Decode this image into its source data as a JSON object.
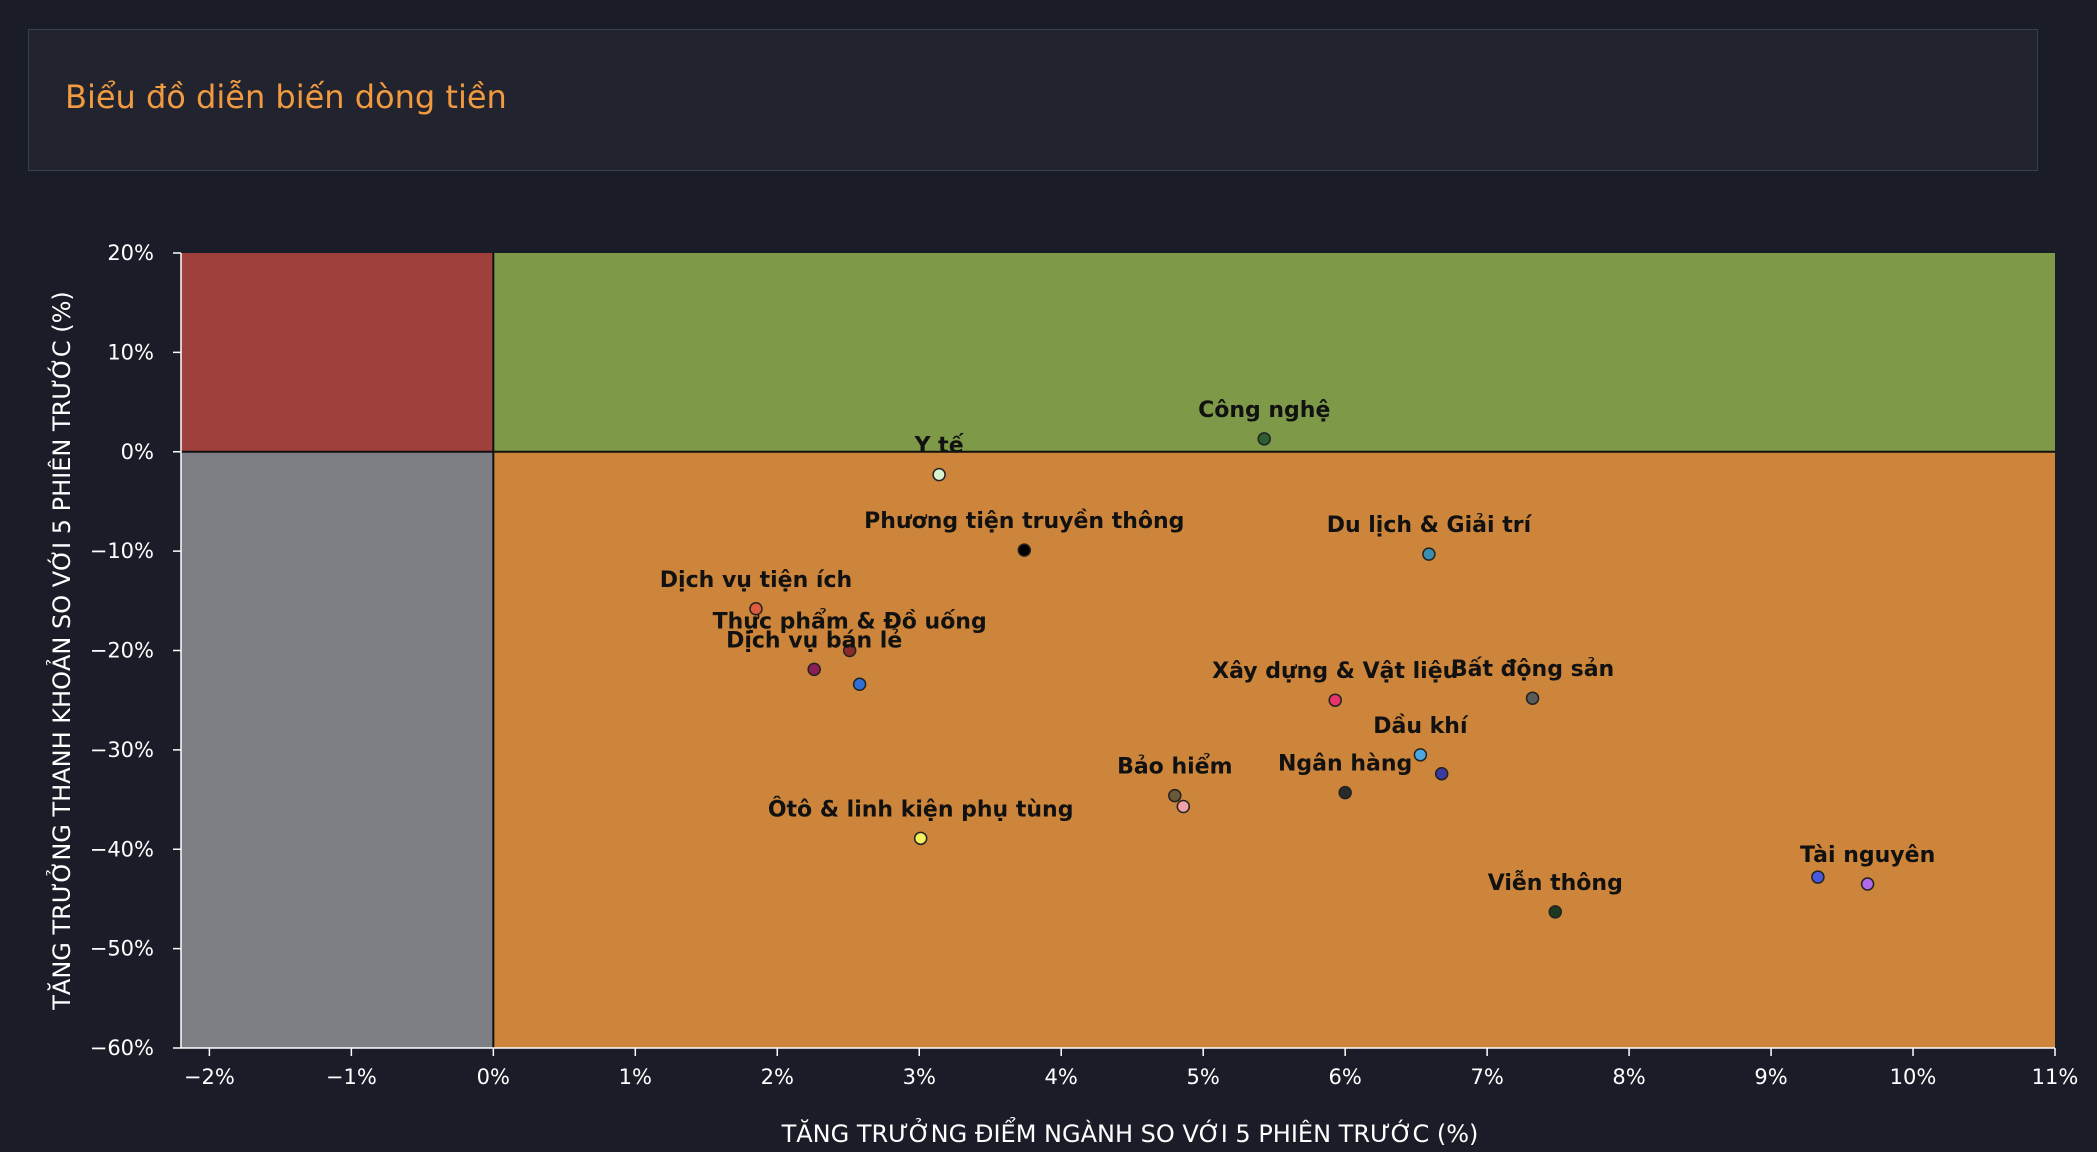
{
  "header": {
    "title": "Biểu đồ diễn biến dòng tiền"
  },
  "chart_data": {
    "type": "scatter",
    "title": "",
    "xlabel": "TĂNG TRƯỞNG ĐIỂM NGÀNH SO VỚI 5 PHIÊN TRƯỚC (%)",
    "ylabel": "TĂNG TRƯỞNG THANH KHOẢN SO VỚI 5 PHIÊN TRƯỚC (%)",
    "xlim": [
      -2.2,
      11
    ],
    "ylim": [
      -60,
      20
    ],
    "x_ticks": [
      -2,
      -1,
      0,
      1,
      2,
      3,
      4,
      5,
      6,
      7,
      8,
      9,
      10,
      11
    ],
    "x_tick_labels": [
      "−2%",
      "−1%",
      "0%",
      "1%",
      "2%",
      "3%",
      "4%",
      "5%",
      "6%",
      "7%",
      "8%",
      "9%",
      "10%",
      "11%"
    ],
    "y_ticks": [
      20,
      10,
      0,
      -10,
      -20,
      -30,
      -40,
      -50,
      -60
    ],
    "y_tick_labels": [
      "20%",
      "10%",
      "0%",
      "−10%",
      "−20%",
      "−30%",
      "−40%",
      "−50%",
      "−60%"
    ],
    "quadrants": [
      {
        "x": [
          -2.2,
          0
        ],
        "y": [
          0,
          20
        ],
        "color": "#a0403c"
      },
      {
        "x": [
          0,
          11
        ],
        "y": [
          0,
          20
        ],
        "color": "#7e9a48"
      },
      {
        "x": [
          -2.2,
          0
        ],
        "y": [
          -60,
          0
        ],
        "color": "#7e7f85"
      },
      {
        "x": [
          0,
          11
        ],
        "y": [
          -60,
          0
        ],
        "color": "#cc853a"
      }
    ],
    "points": [
      {
        "label": "Công nghệ",
        "x": 5.43,
        "y": 1.3,
        "color": "#2e5e32"
      },
      {
        "label": "Y tế",
        "x": 3.14,
        "y": -2.3,
        "color": "#d9f2d0"
      },
      {
        "label": "Phương tiện truyền thông",
        "x": 3.74,
        "y": -9.9,
        "color": "#000000"
      },
      {
        "label": "Du lịch & Giải trí",
        "x": 6.59,
        "y": -10.3,
        "color": "#3a8fb0"
      },
      {
        "label": "Dịch vụ tiện ích",
        "x": 1.85,
        "y": -15.8,
        "color": "#e05a3c"
      },
      {
        "label": "Thực phẩm & Đồ uống",
        "x": 2.51,
        "y": -20.0,
        "color": "#8a2a2a"
      },
      {
        "label": "Dịch vụ bán lẻ",
        "x": 2.26,
        "y": -21.9,
        "color": "#8a1f55"
      },
      {
        "label": "",
        "x": 2.58,
        "y": -23.4,
        "color": "#2e6fd8"
      },
      {
        "label": "Xây dựng & Vật liệu",
        "x": 5.93,
        "y": -25.0,
        "color": "#e8346a"
      },
      {
        "label": "Bất động sản",
        "x": 7.32,
        "y": -24.8,
        "color": "#5a5a5a"
      },
      {
        "label": "Dầu khí",
        "x": 6.53,
        "y": -30.5,
        "color": "#4aa8e0"
      },
      {
        "label": "",
        "x": 6.68,
        "y": -32.4,
        "color": "#3a3aa0"
      },
      {
        "label": "Ngân hàng",
        "x": 6.0,
        "y": -34.3,
        "color": "#2a2a2a"
      },
      {
        "label": "Bảo hiểm",
        "x": 4.8,
        "y": -34.6,
        "color": "#6a5a3a"
      },
      {
        "label": "",
        "x": 4.86,
        "y": -35.7,
        "color": "#f0a0a8"
      },
      {
        "label": "Ôtô & linh kiện phụ tùng",
        "x": 3.01,
        "y": -38.9,
        "color": "#f4f060"
      },
      {
        "label": "Tài nguyên",
        "x": 9.68,
        "y": -43.5,
        "color": "#b06ae8"
      },
      {
        "label": "",
        "x": 9.33,
        "y": -42.8,
        "color": "#4a5ae0"
      },
      {
        "label": "Viễn thông",
        "x": 7.48,
        "y": -46.3,
        "color": "#1e3a1e"
      }
    ]
  }
}
